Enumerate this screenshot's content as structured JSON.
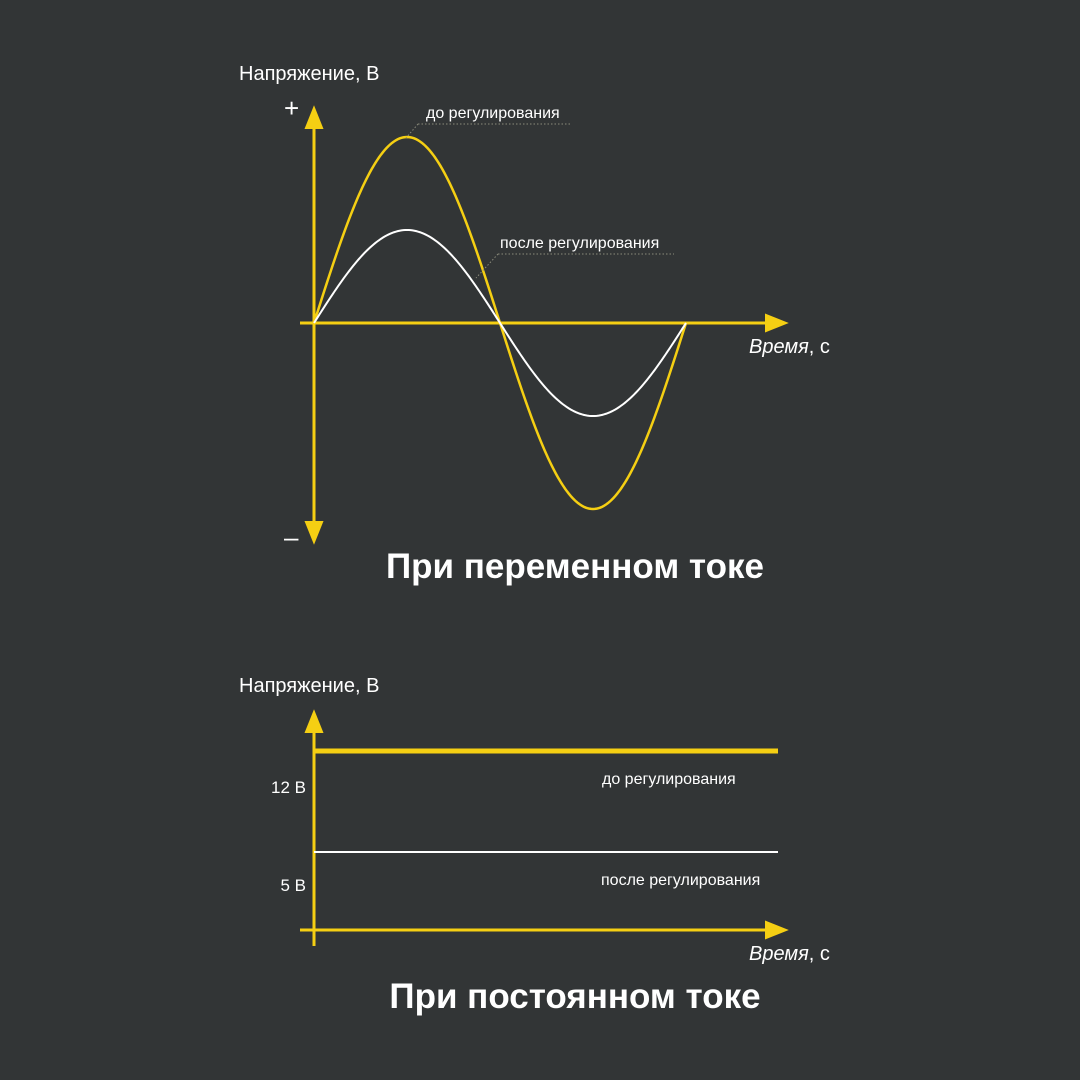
{
  "colors": {
    "background": "#323536",
    "accent": "#f5cf13",
    "secondary": "#ffffff"
  },
  "chart_data": [
    {
      "type": "line",
      "title": "При переменном токе",
      "ylabel": "Напряжение, В",
      "xlabel_main": "Время",
      "xlabel_unit": ", с",
      "y_plus": "+",
      "y_minus": "–",
      "grid": false,
      "x": [
        0,
        0.25,
        0.5,
        0.75,
        1.0
      ],
      "series": [
        {
          "name": "до регулирования",
          "color": "#f5cf13",
          "values": [
            0,
            1.0,
            0,
            -1.0,
            0
          ],
          "shape": "sine",
          "amplitude": 1.0
        },
        {
          "name": "после регулирования",
          "color": "#ffffff",
          "values": [
            0,
            0.5,
            0,
            -0.5,
            0
          ],
          "shape": "sine",
          "amplitude": 0.5
        }
      ],
      "ylim": [
        -1.15,
        1.15
      ]
    },
    {
      "type": "line",
      "title": "При постоянном токе",
      "ylabel": "Напряжение, В",
      "xlabel_main": "Время",
      "xlabel_unit": ", с",
      "grid": false,
      "yticks": [
        "12 В",
        "5 В"
      ],
      "series": [
        {
          "name": "до регулирования",
          "color": "#f5cf13",
          "values": [
            12,
            12
          ]
        },
        {
          "name": "после регулирования",
          "color": "#ffffff",
          "values": [
            5,
            5
          ]
        }
      ],
      "ylim": [
        0,
        13.8
      ]
    }
  ]
}
